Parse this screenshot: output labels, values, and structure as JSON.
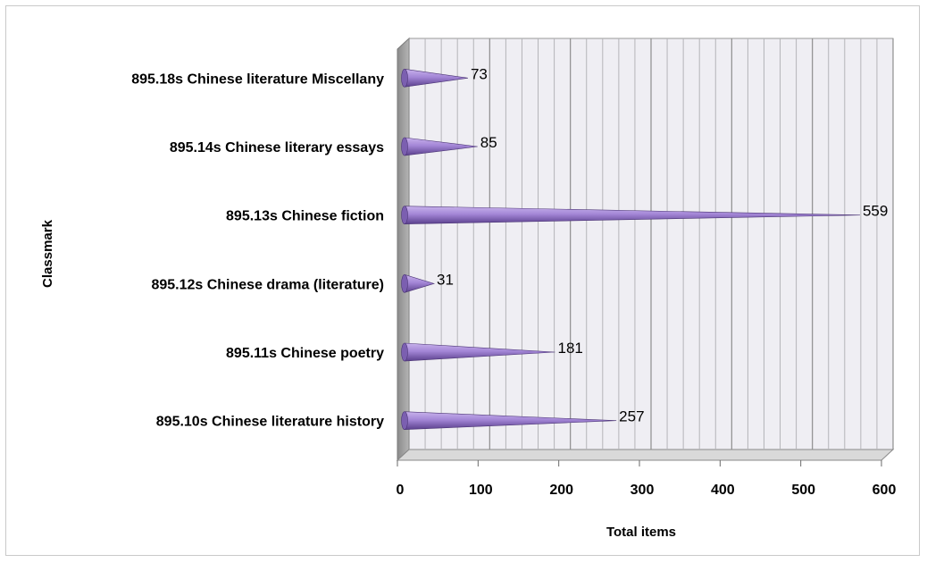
{
  "chart_data": {
    "type": "bar",
    "orientation": "horizontal",
    "style": "3d-cone",
    "categories": [
      "895.18s  Chinese literature Miscellany",
      "895.14s  Chinese literary essays",
      "895.13s  Chinese fiction",
      "895.12s  Chinese drama (literature)",
      "895.11s  Chinese poetry",
      "895.10s  Chinese literature history"
    ],
    "values": [
      73,
      85,
      559,
      31,
      181,
      257
    ],
    "data_labels": [
      "73",
      "85",
      "559",
      "31",
      "181",
      "257"
    ],
    "title": "",
    "xlabel": "Total items",
    "ylabel": "Classmark",
    "xlim": [
      0,
      600
    ],
    "xticks": [
      "0",
      "100",
      "200",
      "300",
      "400",
      "500",
      "600"
    ],
    "grid": true,
    "legend": "none",
    "colors": {
      "cone_light": "#c9b3ec",
      "cone_dark": "#5a3f8c",
      "back_wall": "#efeef3",
      "side_wall": "#9e9e9e",
      "floor": "#d9d9d9",
      "grid": "#9a9a9a"
    }
  }
}
